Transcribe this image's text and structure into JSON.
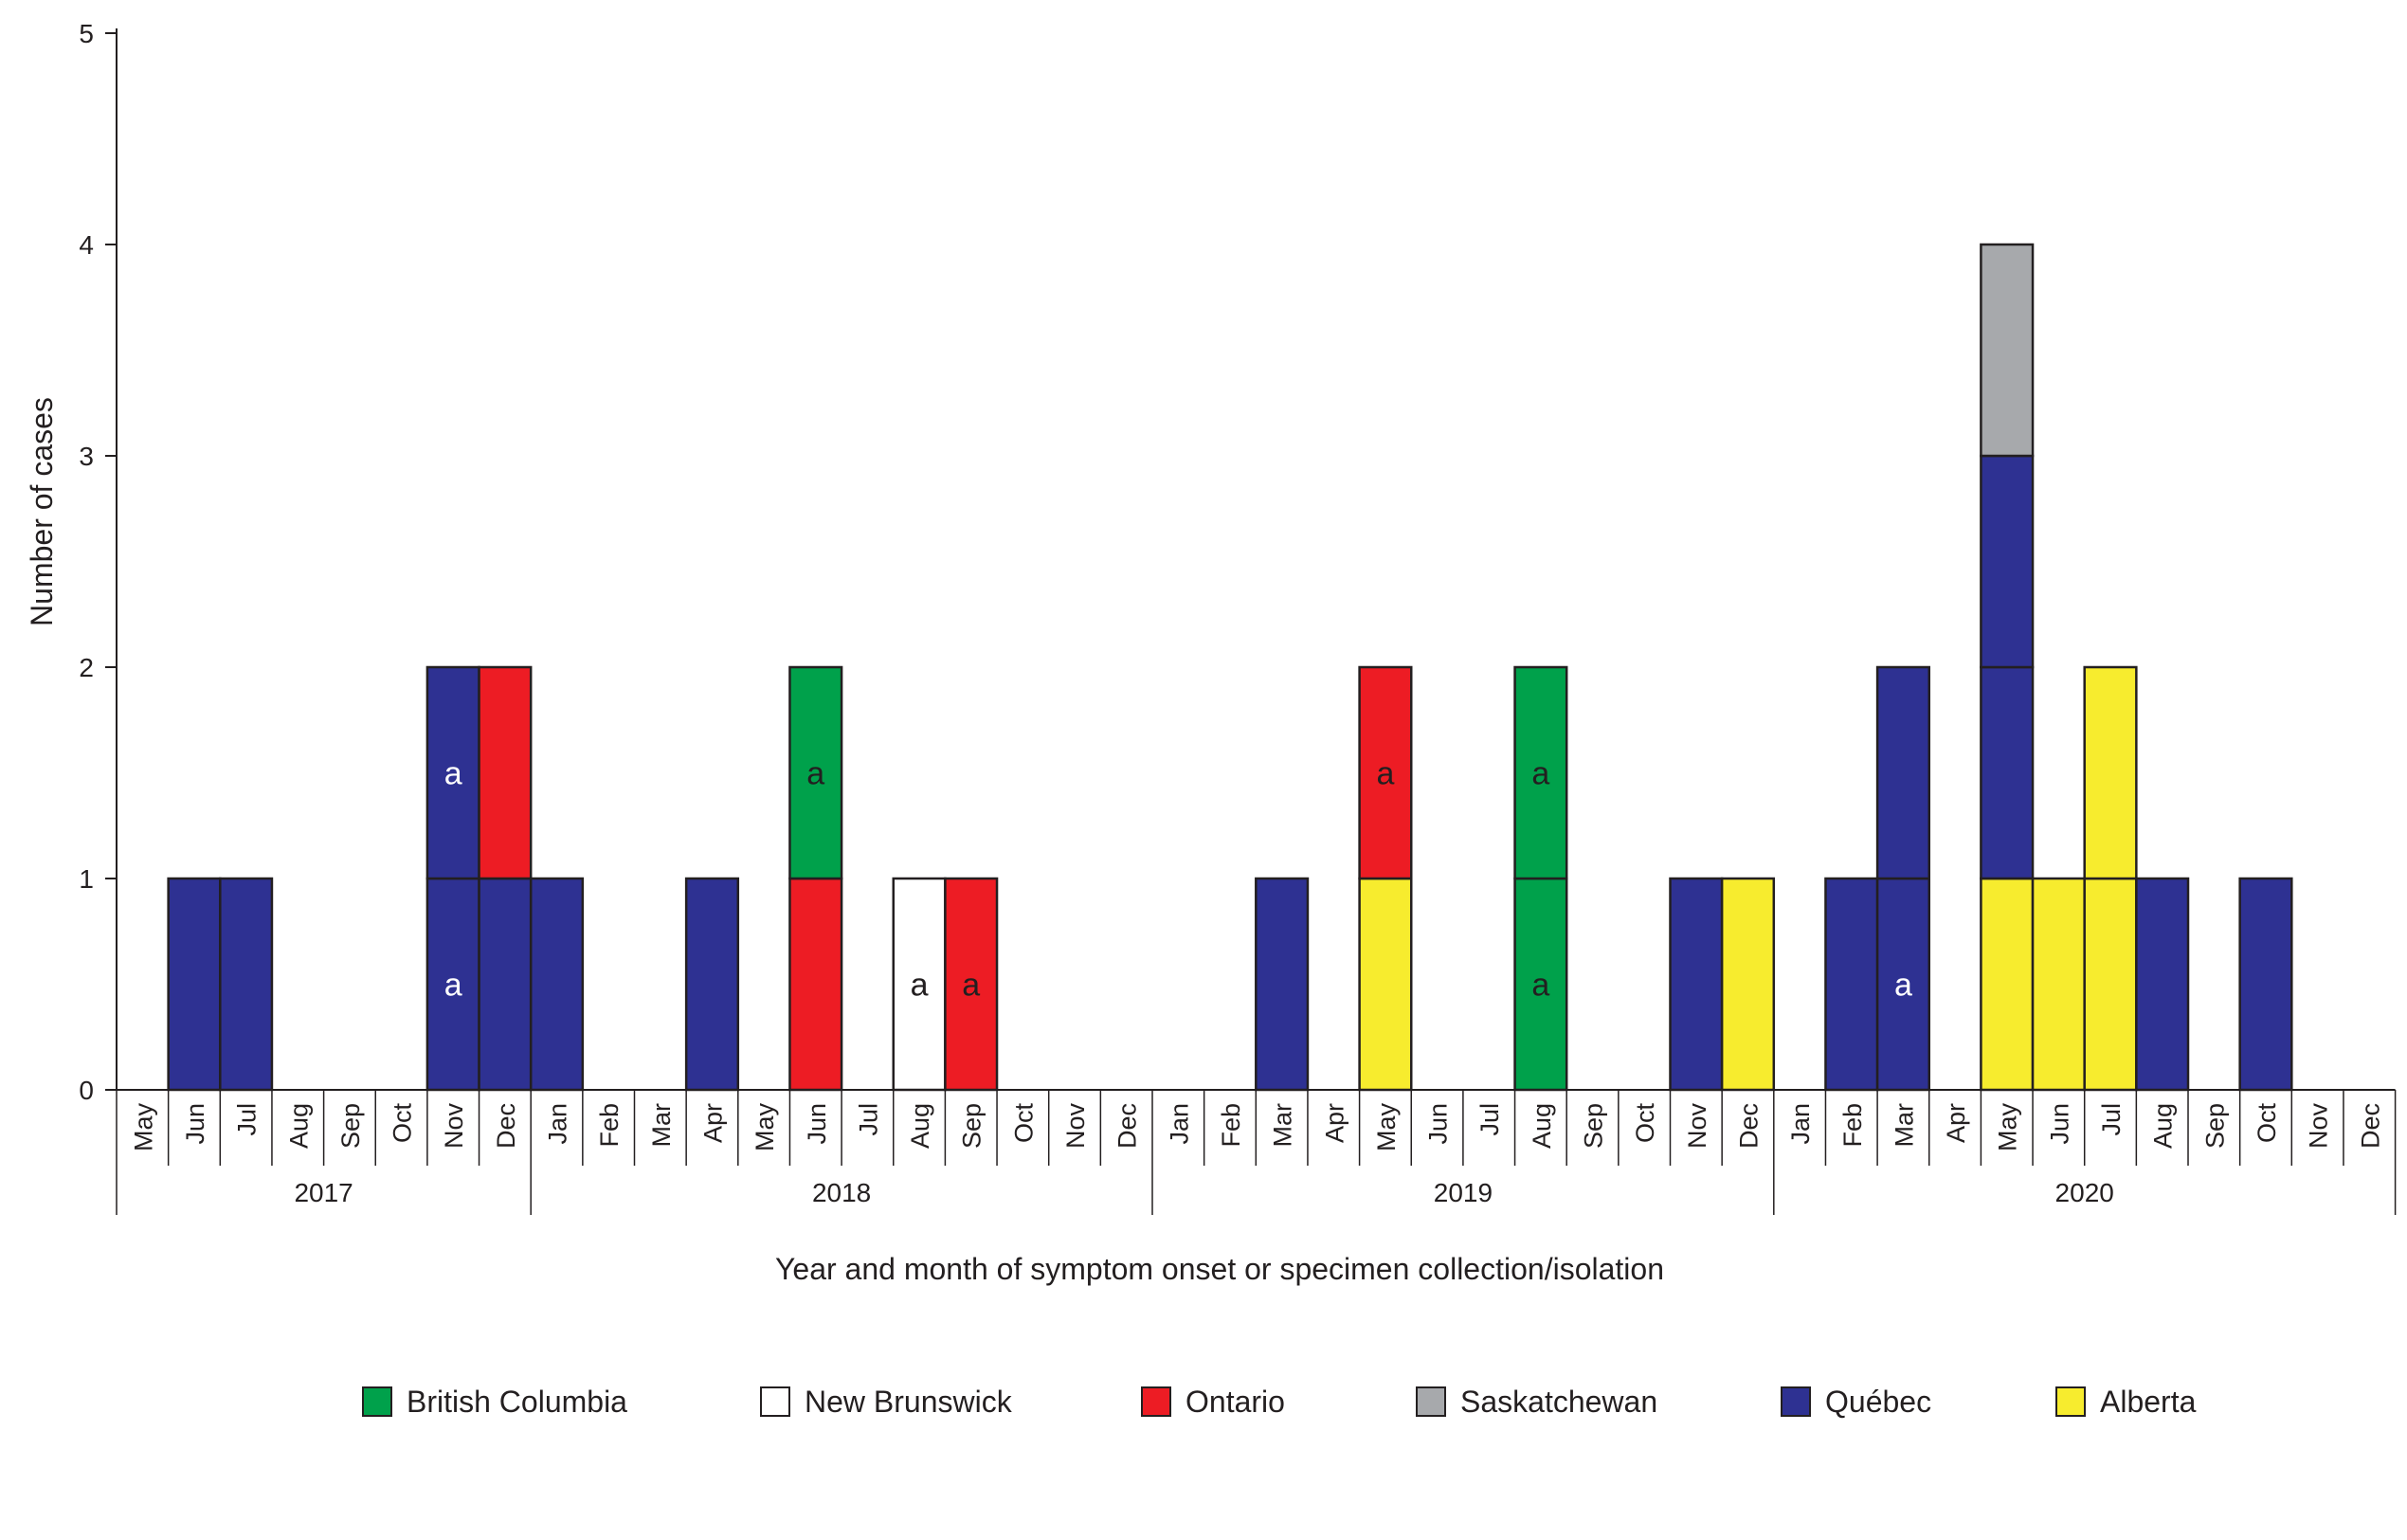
{
  "chart_data": {
    "type": "bar",
    "stacked": true,
    "ylabel": "Number of cases",
    "xlabel": "Year and month of symptom onset or specimen collection/isolation",
    "ylim": [
      0,
      5
    ],
    "yticks": [
      "0",
      "1",
      "2",
      "3",
      "4",
      "5"
    ],
    "grid": false,
    "legend_position": "bottom",
    "categories": [
      "May",
      "Jun",
      "Jul",
      "Aug",
      "Sep",
      "Oct",
      "Nov",
      "Dec",
      "Jan",
      "Feb",
      "Mar",
      "Apr",
      "May",
      "Jun",
      "Jul",
      "Aug",
      "Sep",
      "Oct",
      "Nov",
      "Dec",
      "Jan",
      "Feb",
      "Mar",
      "Apr",
      "May",
      "Jun",
      "Jul",
      "Aug",
      "Sep",
      "Oct",
      "Nov",
      "Dec",
      "Jan",
      "Feb",
      "Mar",
      "Apr",
      "May",
      "Jun",
      "Jul",
      "Aug",
      "Sep",
      "Oct",
      "Nov",
      "Dec"
    ],
    "year_groups": [
      {
        "label": "2017",
        "start": 0,
        "count": 8
      },
      {
        "label": "2018",
        "start": 8,
        "count": 12
      },
      {
        "label": "2019",
        "start": 20,
        "count": 12
      },
      {
        "label": "2020",
        "start": 32,
        "count": 12
      }
    ],
    "series": [
      {
        "name": "British Columbia",
        "color": "#00a14b"
      },
      {
        "name": "New Brunswick",
        "color": "#ffffff"
      },
      {
        "name": "Ontario",
        "color": "#ed1c24"
      },
      {
        "name": "Saskatchewan",
        "color": "#a7a9ac"
      },
      {
        "name": "Québec",
        "color": "#2e3192"
      },
      {
        "name": "Alberta",
        "color": "#f7ec2e"
      }
    ],
    "cases": [
      {
        "month_index": 1,
        "series": "Québec",
        "annotation": ""
      },
      {
        "month_index": 2,
        "series": "Québec",
        "annotation": ""
      },
      {
        "month_index": 6,
        "series": "Québec",
        "annotation": "a"
      },
      {
        "month_index": 6,
        "series": "Québec",
        "annotation": "a"
      },
      {
        "month_index": 7,
        "series": "Québec",
        "annotation": ""
      },
      {
        "month_index": 7,
        "series": "Ontario",
        "annotation": ""
      },
      {
        "month_index": 8,
        "series": "Québec",
        "annotation": ""
      },
      {
        "month_index": 11,
        "series": "Québec",
        "annotation": ""
      },
      {
        "month_index": 13,
        "series": "Ontario",
        "annotation": ""
      },
      {
        "month_index": 13,
        "series": "British Columbia",
        "annotation": "a"
      },
      {
        "month_index": 15,
        "series": "New Brunswick",
        "annotation": "a"
      },
      {
        "month_index": 16,
        "series": "Ontario",
        "annotation": "a"
      },
      {
        "month_index": 22,
        "series": "Québec",
        "annotation": ""
      },
      {
        "month_index": 24,
        "series": "Alberta",
        "annotation": ""
      },
      {
        "month_index": 24,
        "series": "Ontario",
        "annotation": "a"
      },
      {
        "month_index": 27,
        "series": "British Columbia",
        "annotation": "a"
      },
      {
        "month_index": 27,
        "series": "British Columbia",
        "annotation": "a"
      },
      {
        "month_index": 30,
        "series": "Québec",
        "annotation": ""
      },
      {
        "month_index": 31,
        "series": "Alberta",
        "annotation": ""
      },
      {
        "month_index": 33,
        "series": "Québec",
        "annotation": ""
      },
      {
        "month_index": 34,
        "series": "Québec",
        "annotation": "a"
      },
      {
        "month_index": 34,
        "series": "Québec",
        "annotation": ""
      },
      {
        "month_index": 36,
        "series": "Alberta",
        "annotation": ""
      },
      {
        "month_index": 36,
        "series": "Québec",
        "annotation": ""
      },
      {
        "month_index": 36,
        "series": "Québec",
        "annotation": ""
      },
      {
        "month_index": 36,
        "series": "Saskatchewan",
        "annotation": ""
      },
      {
        "month_index": 37,
        "series": "Alberta",
        "annotation": ""
      },
      {
        "month_index": 38,
        "series": "Alberta",
        "annotation": ""
      },
      {
        "month_index": 38,
        "series": "Alberta",
        "annotation": ""
      },
      {
        "month_index": 39,
        "series": "Québec",
        "annotation": ""
      },
      {
        "month_index": 41,
        "series": "Québec",
        "annotation": ""
      }
    ]
  }
}
